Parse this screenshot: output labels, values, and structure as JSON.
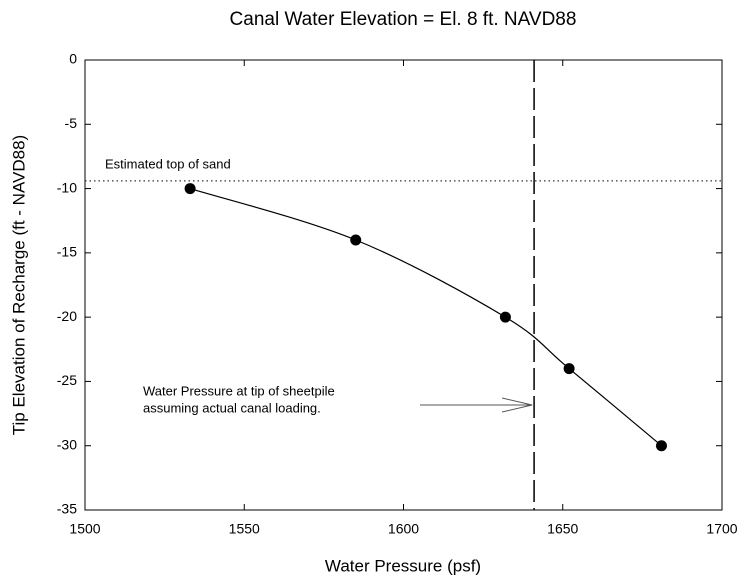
{
  "chart_data": {
    "type": "line",
    "title": "Canal Water Elevation = El. 8 ft. NAVD88",
    "xlabel": "Water Pressure (psf)",
    "ylabel": "Tip Elevation of Recharge (ft - NAVD88)",
    "x": [
      1533,
      1585,
      1632,
      1652,
      1681
    ],
    "series": [
      {
        "color": "#000000",
        "values": [
          -10,
          -14,
          -20,
          -24,
          -30
        ]
      }
    ],
    "xlim": [
      1500,
      1700
    ],
    "xticks": [
      1500,
      1550,
      1600,
      1650,
      1700
    ],
    "ylim": [
      -35,
      0
    ],
    "yticks": [
      0,
      -5,
      -10,
      -15,
      -20,
      -25,
      -30,
      -35
    ],
    "hlines": [
      {
        "value": -9.4,
        "label": "Estimated top of sand"
      }
    ],
    "vlines": [
      {
        "value": 1641
      }
    ],
    "annotation": {
      "lines": [
        "Water Pressure at tip of sheetpile",
        "assuming actual canal loading."
      ]
    },
    "grid": false
  }
}
